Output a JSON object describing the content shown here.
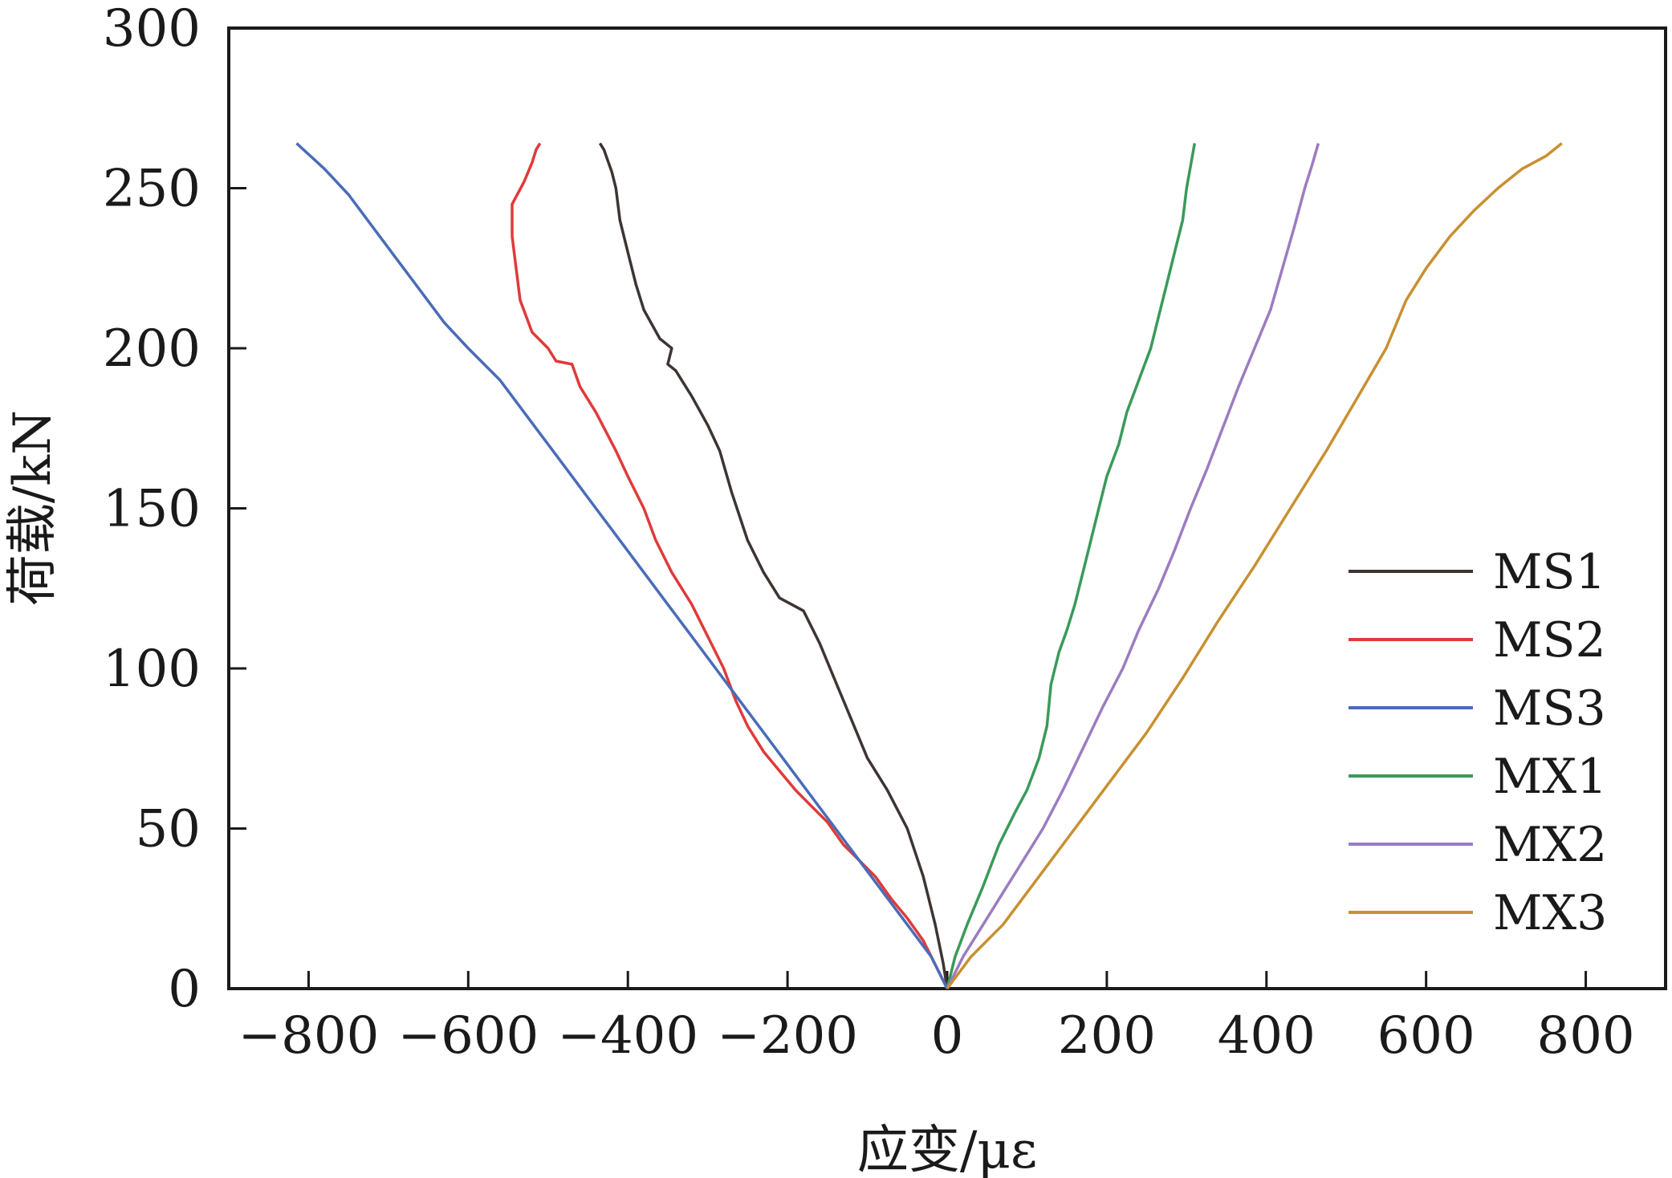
{
  "chart_data": {
    "type": "line",
    "xlabel": "应变/με",
    "ylabel": "荷载/kN",
    "xlim": [
      -900,
      900
    ],
    "ylim": [
      0,
      300
    ],
    "xticks": [
      -800,
      -600,
      -400,
      -200,
      0,
      200,
      400,
      600,
      800
    ],
    "yticks": [
      0,
      50,
      100,
      150,
      200,
      250,
      300
    ],
    "x_tick_labels": [
      "−800",
      "−600",
      "−400",
      "−200",
      "0",
      "200",
      "400",
      "600",
      "800"
    ],
    "y_tick_labels": [
      "0",
      "50",
      "100",
      "150",
      "200",
      "250",
      "300"
    ],
    "grid": false,
    "legend_position": "bottom-right",
    "series": [
      {
        "name": "MS1",
        "color": "#3d3533",
        "points": [
          [
            0,
            0
          ],
          [
            -5,
            8
          ],
          [
            -15,
            20
          ],
          [
            -30,
            35
          ],
          [
            -50,
            50
          ],
          [
            -75,
            62
          ],
          [
            -100,
            72
          ],
          [
            -120,
            84
          ],
          [
            -140,
            96
          ],
          [
            -160,
            108
          ],
          [
            -180,
            118
          ],
          [
            -210,
            122
          ],
          [
            -230,
            130
          ],
          [
            -250,
            140
          ],
          [
            -270,
            155
          ],
          [
            -285,
            168
          ],
          [
            -300,
            176
          ],
          [
            -320,
            185
          ],
          [
            -340,
            193
          ],
          [
            -350,
            195
          ],
          [
            -345,
            200
          ],
          [
            -360,
            203
          ],
          [
            -380,
            212
          ],
          [
            -390,
            220
          ],
          [
            -400,
            230
          ],
          [
            -410,
            240
          ],
          [
            -415,
            250
          ],
          [
            -420,
            255
          ],
          [
            -430,
            262
          ],
          [
            -435,
            264
          ]
        ]
      },
      {
        "name": "MS2",
        "color": "#e03a3a",
        "points": [
          [
            0,
            0
          ],
          [
            -10,
            5
          ],
          [
            -30,
            15
          ],
          [
            -50,
            22
          ],
          [
            -70,
            28
          ],
          [
            -90,
            35
          ],
          [
            -110,
            40
          ],
          [
            -130,
            45
          ],
          [
            -150,
            52
          ],
          [
            -170,
            57
          ],
          [
            -190,
            62
          ],
          [
            -210,
            68
          ],
          [
            -230,
            74
          ],
          [
            -250,
            82
          ],
          [
            -265,
            90
          ],
          [
            -280,
            100
          ],
          [
            -300,
            110
          ],
          [
            -320,
            120
          ],
          [
            -345,
            130
          ],
          [
            -365,
            140
          ],
          [
            -380,
            150
          ],
          [
            -400,
            160
          ],
          [
            -415,
            168
          ],
          [
            -440,
            180
          ],
          [
            -460,
            188
          ],
          [
            -470,
            195
          ],
          [
            -490,
            196
          ],
          [
            -500,
            200
          ],
          [
            -520,
            205
          ],
          [
            -535,
            215
          ],
          [
            -540,
            225
          ],
          [
            -545,
            235
          ],
          [
            -545,
            245
          ],
          [
            -530,
            252
          ],
          [
            -520,
            258
          ],
          [
            -515,
            262
          ],
          [
            -510,
            264
          ]
        ]
      },
      {
        "name": "MS3",
        "color": "#4a6cb8",
        "points": [
          [
            0,
            0
          ],
          [
            -20,
            10
          ],
          [
            -50,
            20
          ],
          [
            -80,
            30
          ],
          [
            -110,
            40
          ],
          [
            -140,
            50
          ],
          [
            -170,
            60
          ],
          [
            -200,
            70
          ],
          [
            -230,
            80
          ],
          [
            -260,
            90
          ],
          [
            -290,
            100
          ],
          [
            -320,
            110
          ],
          [
            -350,
            120
          ],
          [
            -380,
            130
          ],
          [
            -410,
            140
          ],
          [
            -440,
            150
          ],
          [
            -470,
            160
          ],
          [
            -500,
            170
          ],
          [
            -530,
            180
          ],
          [
            -560,
            190
          ],
          [
            -600,
            200
          ],
          [
            -630,
            208
          ],
          [
            -660,
            218
          ],
          [
            -690,
            228
          ],
          [
            -720,
            238
          ],
          [
            -750,
            248
          ],
          [
            -780,
            256
          ],
          [
            -815,
            264
          ]
        ]
      },
      {
        "name": "MX1",
        "color": "#3a9a5a",
        "points": [
          [
            0,
            0
          ],
          [
            10,
            10
          ],
          [
            25,
            20
          ],
          [
            45,
            32
          ],
          [
            65,
            45
          ],
          [
            85,
            55
          ],
          [
            100,
            62
          ],
          [
            115,
            72
          ],
          [
            125,
            82
          ],
          [
            130,
            95
          ],
          [
            140,
            105
          ],
          [
            150,
            112
          ],
          [
            160,
            120
          ],
          [
            170,
            130
          ],
          [
            180,
            140
          ],
          [
            190,
            150
          ],
          [
            200,
            160
          ],
          [
            215,
            170
          ],
          [
            225,
            180
          ],
          [
            240,
            190
          ],
          [
            255,
            200
          ],
          [
            265,
            210
          ],
          [
            275,
            220
          ],
          [
            285,
            230
          ],
          [
            295,
            240
          ],
          [
            300,
            250
          ],
          [
            305,
            257
          ],
          [
            310,
            264
          ]
        ]
      },
      {
        "name": "MX2",
        "color": "#9b7cc0",
        "points": [
          [
            0,
            0
          ],
          [
            20,
            10
          ],
          [
            45,
            20
          ],
          [
            70,
            30
          ],
          [
            95,
            40
          ],
          [
            120,
            50
          ],
          [
            145,
            62
          ],
          [
            170,
            75
          ],
          [
            195,
            88
          ],
          [
            220,
            100
          ],
          [
            240,
            112
          ],
          [
            265,
            125
          ],
          [
            285,
            137
          ],
          [
            305,
            150
          ],
          [
            325,
            162
          ],
          [
            345,
            175
          ],
          [
            365,
            188
          ],
          [
            385,
            200
          ],
          [
            405,
            212
          ],
          [
            420,
            225
          ],
          [
            435,
            238
          ],
          [
            448,
            250
          ],
          [
            458,
            258
          ],
          [
            465,
            264
          ]
        ]
      },
      {
        "name": "MX3",
        "color": "#c89030",
        "points": [
          [
            0,
            0
          ],
          [
            30,
            10
          ],
          [
            70,
            20
          ],
          [
            115,
            35
          ],
          [
            160,
            50
          ],
          [
            205,
            65
          ],
          [
            250,
            80
          ],
          [
            295,
            97
          ],
          [
            340,
            115
          ],
          [
            385,
            132
          ],
          [
            430,
            150
          ],
          [
            475,
            168
          ],
          [
            515,
            185
          ],
          [
            550,
            200
          ],
          [
            575,
            215
          ],
          [
            600,
            225
          ],
          [
            630,
            235
          ],
          [
            660,
            243
          ],
          [
            690,
            250
          ],
          [
            720,
            256
          ],
          [
            750,
            260
          ],
          [
            770,
            264
          ]
        ]
      }
    ]
  }
}
